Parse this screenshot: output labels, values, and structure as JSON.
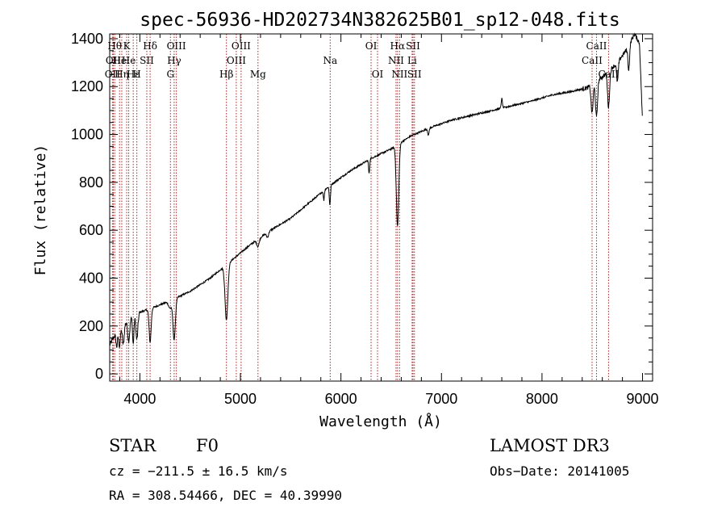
{
  "chart_data": {
    "type": "line",
    "title": "spec-56936-HD202734N382625B01_sp12-048.fits",
    "xlabel": "Wavelength (Å)",
    "ylabel": "Flux (relative)",
    "xlim": [
      3700,
      9100
    ],
    "ylim": [
      -30,
      1420
    ],
    "x_ticks": [
      4000,
      5000,
      6000,
      7000,
      8000,
      9000
    ],
    "y_ticks": [
      0,
      200,
      400,
      600,
      800,
      1000,
      1200,
      1400
    ],
    "continuum_anchors": [
      [
        3700,
        120
      ],
      [
        3760,
        170
      ],
      [
        3820,
        195
      ],
      [
        3880,
        225
      ],
      [
        3950,
        250
      ],
      [
        4100,
        272
      ],
      [
        4300,
        305
      ],
      [
        4500,
        345
      ],
      [
        4700,
        400
      ],
      [
        4900,
        470
      ],
      [
        5100,
        540
      ],
      [
        5300,
        600
      ],
      [
        5500,
        650
      ],
      [
        5700,
        720
      ],
      [
        5900,
        790
      ],
      [
        6100,
        850
      ],
      [
        6300,
        900
      ],
      [
        6500,
        940
      ],
      [
        6700,
        995
      ],
      [
        6900,
        1030
      ],
      [
        7100,
        1060
      ],
      [
        7300,
        1080
      ],
      [
        7500,
        1100
      ],
      [
        7700,
        1120
      ],
      [
        7900,
        1140
      ],
      [
        8100,
        1165
      ],
      [
        8300,
        1180
      ],
      [
        8450,
        1195
      ],
      [
        8600,
        1240
      ],
      [
        8750,
        1300
      ],
      [
        8850,
        1360
      ],
      [
        8920,
        1420
      ],
      [
        8970,
        1380
      ],
      [
        9000,
        1050
      ]
    ],
    "absorption_features": [
      {
        "center": 3770,
        "depth": 60,
        "width": 8
      },
      {
        "center": 3798,
        "depth": 70,
        "width": 8
      },
      {
        "center": 3835,
        "depth": 80,
        "width": 9
      },
      {
        "center": 3889,
        "depth": 90,
        "width": 10
      },
      {
        "center": 3934,
        "depth": 120,
        "width": 7
      },
      {
        "center": 3970,
        "depth": 110,
        "width": 10
      },
      {
        "center": 4102,
        "depth": 140,
        "width": 10
      },
      {
        "center": 4300,
        "depth": 30,
        "width": 15
      },
      {
        "center": 4341,
        "depth": 170,
        "width": 12
      },
      {
        "center": 4861,
        "depth": 230,
        "width": 14
      },
      {
        "center": 5175,
        "depth": 30,
        "width": 12
      },
      {
        "center": 5270,
        "depth": 20,
        "width": 10
      },
      {
        "center": 5890,
        "depth": 80,
        "width": 6
      },
      {
        "center": 5830,
        "depth": 40,
        "width": 5
      },
      {
        "center": 6280,
        "depth": 60,
        "width": 5
      },
      {
        "center": 6563,
        "depth": 340,
        "width": 12
      },
      {
        "center": 6870,
        "depth": 30,
        "width": 6
      },
      {
        "center": 8498,
        "depth": 120,
        "width": 10
      },
      {
        "center": 8542,
        "depth": 150,
        "width": 10
      },
      {
        "center": 8662,
        "depth": 150,
        "width": 10
      },
      {
        "center": 8750,
        "depth": 80,
        "width": 8
      },
      {
        "center": 8863,
        "depth": 100,
        "width": 8
      }
    ],
    "emission_features": [
      {
        "center": 7600,
        "height": 40,
        "width": 6
      }
    ],
    "line_markers": [
      {
        "wavelength": 3727,
        "label": "OII",
        "row": 2
      },
      {
        "wavelength": 3736,
        "label": "OII",
        "row": 1
      },
      {
        "wavelength": 3750,
        "label": "Hθ",
        "row": 0
      },
      {
        "wavelength": 3798,
        "label": "He",
        "row": 1
      },
      {
        "wavelength": 3820,
        "label": "Hη",
        "row": 2
      },
      {
        "wavelength": 3869,
        "label": "K",
        "row": 0
      },
      {
        "wavelength": 3889,
        "label": "He",
        "row": 1
      },
      {
        "wavelength": 3934,
        "label": "Hε",
        "row": 2
      },
      {
        "wavelength": 3970,
        "label": "H",
        "row": 2
      },
      {
        "wavelength": 4069,
        "label": "SII",
        "row": 1
      },
      {
        "wavelength": 4102,
        "label": "Hδ",
        "row": 0
      },
      {
        "wavelength": 4304,
        "label": "G",
        "row": 2
      },
      {
        "wavelength": 4341,
        "label": "Hγ",
        "row": 1
      },
      {
        "wavelength": 4363,
        "label": "OIII",
        "row": 0
      },
      {
        "wavelength": 4861,
        "label": "Hβ",
        "row": 2
      },
      {
        "wavelength": 4959,
        "label": "OIII",
        "row": 1
      },
      {
        "wavelength": 5007,
        "label": "OIII",
        "row": 0
      },
      {
        "wavelength": 5175,
        "label": "Mg",
        "row": 2
      },
      {
        "wavelength": 5893,
        "label": "Na",
        "row": 1
      },
      {
        "wavelength": 6300,
        "label": "OI",
        "row": 0
      },
      {
        "wavelength": 6364,
        "label": "OI",
        "row": 2
      },
      {
        "wavelength": 6548,
        "label": "NII",
        "row": 1
      },
      {
        "wavelength": 6563,
        "label": "Hα",
        "row": 0
      },
      {
        "wavelength": 6583,
        "label": "NII",
        "row": 2
      },
      {
        "wavelength": 6717,
        "label": "SII",
        "row": 0
      },
      {
        "wavelength": 6731,
        "label": "SII",
        "row": 2
      },
      {
        "wavelength": 6708,
        "label": "Li",
        "row": 1
      },
      {
        "wavelength": 8498,
        "label": "CaII",
        "row": 1
      },
      {
        "wavelength": 8542,
        "label": "CaII",
        "row": 0
      },
      {
        "wavelength": 8662,
        "label": "CaII",
        "row": 2
      }
    ]
  },
  "info": {
    "object_class": "STAR",
    "subclass": "F0",
    "survey": "LAMOST DR3",
    "cz": "cz = −211.5 ± 16.5 km/s",
    "obs_date": "Obs−Date: 20141005",
    "coords": "RA = 308.54466, DEC =  40.39990"
  },
  "colors": {
    "spectrum": "#000000",
    "marker": "#b22222",
    "axes": "#000000"
  }
}
